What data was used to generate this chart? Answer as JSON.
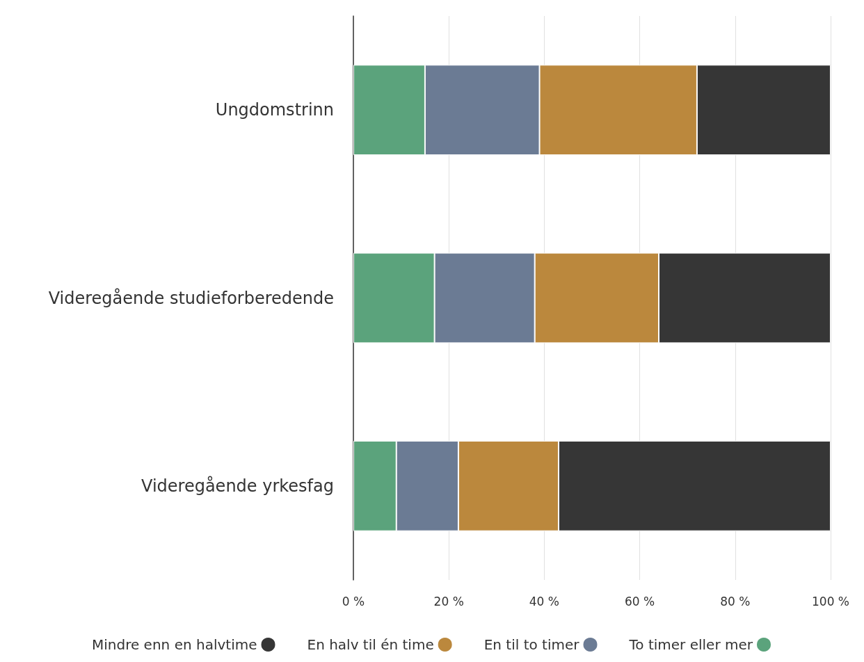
{
  "chart_data": {
    "type": "bar",
    "orientation": "horizontal",
    "stacked": true,
    "categories": [
      "Ungdomstrinn",
      "Videregående studieforberedende",
      "Videregående yrkesfag"
    ],
    "series": [
      {
        "name": "To timer eller mer",
        "color": "#5ba37c",
        "values": [
          15,
          17,
          9
        ]
      },
      {
        "name": "En til to timer",
        "color": "#6b7b94",
        "values": [
          24,
          21,
          13
        ]
      },
      {
        "name": "En halv til én time",
        "color": "#bb883d",
        "values": [
          33,
          26,
          21
        ]
      },
      {
        "name": "Mindre enn en halvtime",
        "color": "#363636",
        "values": [
          28,
          36,
          57
        ]
      }
    ],
    "xlim": [
      0,
      100
    ],
    "xticks": [
      {
        "value": 0,
        "label": "0 %"
      },
      {
        "value": 20,
        "label": "20 %"
      },
      {
        "value": 40,
        "label": "40 %"
      },
      {
        "value": 60,
        "label": "60 %"
      },
      {
        "value": 80,
        "label": "80 %"
      },
      {
        "value": 100,
        "label": "100 %"
      }
    ],
    "grid": "x",
    "legend": "bottom"
  }
}
